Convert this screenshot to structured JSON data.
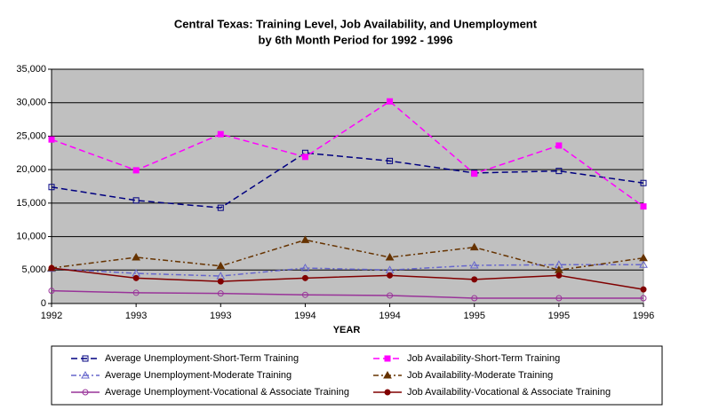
{
  "chart_data": {
    "type": "line",
    "title": [
      "Central Texas:  Training Level, Job Availability, and Unemployment",
      "by 6th Month Period for 1992 - 1996"
    ],
    "x_label": "YEAR",
    "categories": [
      "1992",
      "1993",
      "1993",
      "1994",
      "1994",
      "1995",
      "1995",
      "1996"
    ],
    "ylim": [
      0,
      35000
    ],
    "yticks": [
      0,
      {
        "value": 5000,
        "label": "5,000"
      },
      {
        "value": 10000,
        "label": "10,000"
      },
      {
        "value": 15000,
        "label": "15,000"
      },
      {
        "value": 20000,
        "label": "20,000"
      },
      {
        "value": 25000,
        "label": "25,000"
      },
      {
        "value": 30000,
        "label": "30,000"
      },
      {
        "value": 35000,
        "label": "35,000"
      }
    ],
    "grid": true,
    "legend": "bottom",
    "series": [
      {
        "name": "Average Unemployment-Short-Term Training",
        "color": "#000080",
        "dash": "7 4",
        "marker": "square-open",
        "values": [
          17400,
          15400,
          14300,
          22500,
          21300,
          19500,
          19800,
          18000
        ]
      },
      {
        "name": "Job Availability-Short-Term Training",
        "color": "#ff00ff",
        "dash": "7 4",
        "marker": "square-filled",
        "values": [
          24500,
          19900,
          25300,
          21900,
          30200,
          19400,
          23600,
          14500
        ]
      },
      {
        "name": "Average Unemployment-Moderate Training",
        "color": "#6666cc",
        "dash": "6 3 2 3",
        "marker": "triangle-open",
        "values": [
          5200,
          4500,
          4100,
          5300,
          5000,
          5700,
          5800,
          5800
        ]
      },
      {
        "name": "Job Availability-Moderate Training",
        "color": "#663300",
        "dash": "6 3 2 3",
        "marker": "triangle-filled",
        "values": [
          5300,
          6900,
          5600,
          9500,
          6900,
          8400,
          5000,
          6800
        ]
      },
      {
        "name": "Average Unemployment-Vocational & Associate Training",
        "color": "#993399",
        "dash": "",
        "marker": "circle-open",
        "values": [
          1900,
          1600,
          1500,
          1300,
          1200,
          800,
          800,
          800
        ]
      },
      {
        "name": "Job Availability-Vocational & Associate Training",
        "color": "#800000",
        "dash": "",
        "marker": "circle-filled",
        "values": [
          5300,
          3800,
          3300,
          3800,
          4200,
          3600,
          4200,
          2100
        ]
      }
    ]
  }
}
